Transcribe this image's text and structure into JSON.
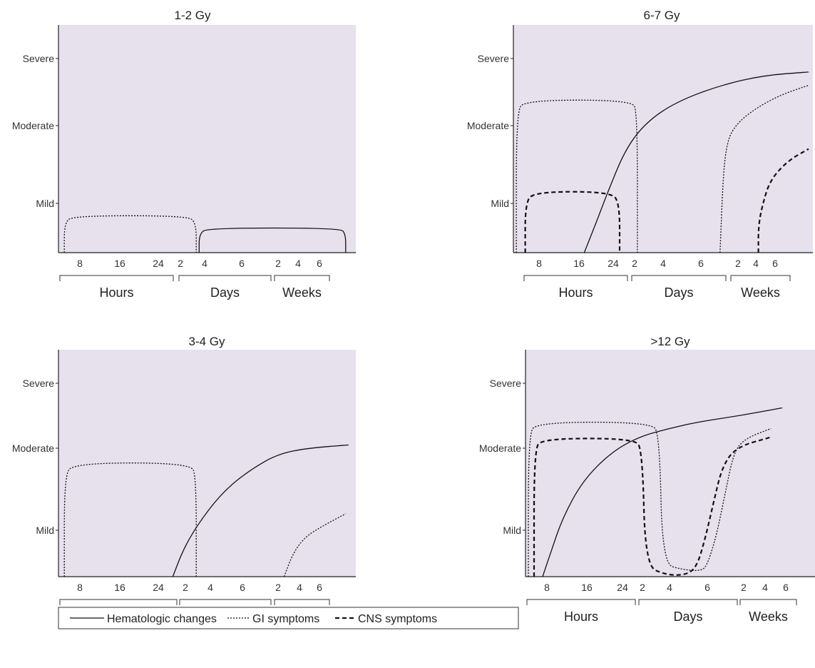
{
  "chart_data": [
    {
      "type": "line",
      "title": "1-2 Gy",
      "y_ticks": [
        "Mild",
        "Moderate",
        "Severe"
      ],
      "x_ticks": [
        "8",
        "16",
        "24",
        "2",
        "4",
        "6",
        "2",
        "4",
        "6"
      ],
      "groups": [
        "Hours",
        "Days",
        "Weeks"
      ],
      "series": [
        {
          "name": "Hematologic changes",
          "style": "solid",
          "points": [
            [
              0.48,
              0
            ],
            [
              0.48,
              0.38
            ],
            [
              0.51,
              0.5
            ],
            [
              0.96,
              0.5
            ],
            [
              0.98,
              0.38
            ],
            [
              0.98,
              0
            ]
          ]
        },
        {
          "name": "GI symptoms",
          "style": "dotted",
          "points": [
            [
              0.02,
              0
            ],
            [
              0.02,
              0.6
            ],
            [
              0.05,
              0.75
            ],
            [
              0.44,
              0.75
            ],
            [
              0.47,
              0.6
            ],
            [
              0.47,
              0
            ]
          ]
        }
      ]
    },
    {
      "type": "line",
      "title": "6-7 Gy",
      "y_ticks": [
        "Mild",
        "Moderate",
        "Severe"
      ],
      "x_ticks": [
        "8",
        "16",
        "24",
        "2",
        "4",
        "6",
        "2",
        "4",
        "6"
      ],
      "groups": [
        "Hours",
        "Days",
        "Weeks"
      ],
      "series": [
        {
          "name": "Hematologic changes",
          "style": "solid",
          "points": [
            [
              0.24,
              0
            ],
            [
              0.28,
              0.6
            ],
            [
              0.32,
              1.15
            ],
            [
              0.38,
              1.7
            ],
            [
              0.45,
              2.05
            ],
            [
              0.55,
              2.35
            ],
            [
              0.7,
              2.6
            ],
            [
              0.85,
              2.75
            ],
            [
              1.0,
              2.8
            ]
          ]
        },
        {
          "name": "GI symptoms",
          "style": "dotted",
          "points": [
            [
              0.01,
              0
            ],
            [
              0.01,
              2.2
            ],
            [
              0.04,
              2.38
            ],
            [
              0.4,
              2.38
            ],
            [
              0.42,
              2.2
            ],
            [
              0.42,
              0
            ]
          ]
        },
        {
          "name": "GI symptoms",
          "style": "dotted",
          "points": [
            [
              0.7,
              0
            ],
            [
              0.71,
              1.3
            ],
            [
              0.72,
              1.7
            ],
            [
              0.74,
              1.95
            ],
            [
              0.8,
              2.2
            ],
            [
              0.9,
              2.45
            ],
            [
              1.0,
              2.6
            ]
          ]
        },
        {
          "name": "CNS symptoms",
          "style": "dashed",
          "points": [
            [
              0.04,
              0
            ],
            [
              0.04,
              1.0
            ],
            [
              0.07,
              1.15
            ],
            [
              0.33,
              1.15
            ],
            [
              0.36,
              1.0
            ],
            [
              0.36,
              0
            ]
          ]
        },
        {
          "name": "CNS symptoms",
          "style": "dashed",
          "points": [
            [
              0.83,
              0
            ],
            [
              0.83,
              0.55
            ],
            [
              0.845,
              1.0
            ],
            [
              0.87,
              1.3
            ],
            [
              0.93,
              1.55
            ],
            [
              1.0,
              1.7
            ]
          ]
        }
      ]
    },
    {
      "type": "line",
      "title": "3-4 Gy",
      "y_ticks": [
        "Mild",
        "Moderate",
        "Severe"
      ],
      "x_ticks": [
        "8",
        "16",
        "24",
        "2",
        "4",
        "6",
        "2",
        "4",
        "6"
      ],
      "groups": [
        "Hours",
        "Days",
        "Weeks"
      ],
      "series": [
        {
          "name": "Hematologic changes",
          "style": "solid",
          "points": [
            [
              0.39,
              0
            ],
            [
              0.43,
              0.65
            ],
            [
              0.49,
              1.15
            ],
            [
              0.57,
              1.5
            ],
            [
              0.66,
              1.75
            ],
            [
              0.75,
              1.93
            ],
            [
              0.85,
              2.0
            ],
            [
              0.99,
              2.05
            ]
          ]
        },
        {
          "name": "GI symptoms",
          "style": "dotted",
          "points": [
            [
              0.02,
              0
            ],
            [
              0.02,
              1.65
            ],
            [
              0.05,
              1.82
            ],
            [
              0.45,
              1.82
            ],
            [
              0.47,
              1.65
            ],
            [
              0.47,
              0
            ]
          ]
        },
        {
          "name": "GI symptoms",
          "style": "dotted",
          "points": [
            [
              0.77,
              0
            ],
            [
              0.8,
              0.5
            ],
            [
              0.84,
              0.85
            ],
            [
              0.9,
              1.05
            ],
            [
              0.98,
              1.2
            ]
          ]
        }
      ]
    },
    {
      "type": "line",
      "title": ">12 Gy",
      "y_ticks": [
        "Mild",
        "Moderate",
        "Severe"
      ],
      "x_ticks": [
        "8",
        "16",
        "24",
        "2",
        "4",
        "6",
        "2",
        "4",
        "6"
      ],
      "groups": [
        "Hours",
        "Days",
        "Weeks"
      ],
      "series": [
        {
          "name": "Hematologic changes",
          "style": "solid",
          "points": [
            [
              0.06,
              0
            ],
            [
              0.09,
              0.55
            ],
            [
              0.13,
              1.15
            ],
            [
              0.2,
              1.6
            ],
            [
              0.3,
              1.95
            ],
            [
              0.4,
              2.18
            ],
            [
              0.5,
              2.3
            ],
            [
              0.6,
              2.4
            ],
            [
              0.75,
              2.5
            ],
            [
              0.9,
              2.62
            ]
          ]
        },
        {
          "name": "GI symptoms",
          "style": "dotted",
          "points": [
            [
              0.01,
              0
            ],
            [
              0.01,
              2.2
            ],
            [
              0.04,
              2.4
            ],
            [
              0.44,
              2.4
            ],
            [
              0.47,
              2.2
            ],
            [
              0.48,
              0.28
            ],
            [
              0.55,
              0.15
            ],
            [
              0.62,
              0.12
            ],
            [
              0.64,
              0.3
            ],
            [
              0.67,
              0.9
            ],
            [
              0.7,
              1.45
            ],
            [
              0.73,
              1.95
            ],
            [
              0.77,
              2.15
            ],
            [
              0.86,
              2.3
            ]
          ]
        },
        {
          "name": "CNS symptoms",
          "style": "dashed",
          "points": [
            [
              0.03,
              0
            ],
            [
              0.03,
              1.98
            ],
            [
              0.06,
              2.15
            ],
            [
              0.38,
              2.15
            ],
            [
              0.41,
              1.98
            ],
            [
              0.42,
              0.24
            ],
            [
              0.49,
              0.04
            ],
            [
              0.56,
              0.03
            ],
            [
              0.6,
              0.2
            ],
            [
              0.63,
              0.82
            ],
            [
              0.66,
              1.35
            ],
            [
              0.69,
              1.78
            ],
            [
              0.74,
              2.02
            ],
            [
              0.86,
              2.17
            ]
          ]
        }
      ]
    }
  ],
  "legend": [
    {
      "label": "Hematologic changes",
      "style": "solid"
    },
    {
      "label": "GI symptoms",
      "style": "dotted"
    },
    {
      "label": "CNS symptoms",
      "style": "dashed"
    }
  ]
}
